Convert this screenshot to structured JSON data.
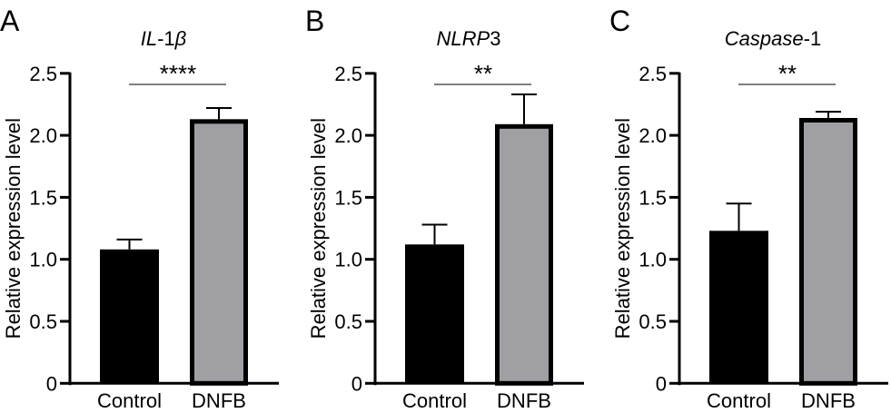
{
  "chart_data": [
    {
      "type": "bar",
      "panel_letter": "A",
      "title_parts": [
        {
          "text": "IL",
          "italic": true
        },
        {
          "text": "-1",
          "italic": false
        },
        {
          "text": "β",
          "italic": true
        }
      ],
      "ylabel": "Relative expression level",
      "categories": [
        "Control",
        "DNFB"
      ],
      "values": [
        1.08,
        2.13
      ],
      "errors": [
        0.08,
        0.09
      ],
      "ylim": [
        0,
        2.5
      ],
      "yticks": [
        "0",
        "0.5",
        "1.0",
        "1.5",
        "2.0",
        "2.5"
      ],
      "significance": "****",
      "colors": [
        "#000000",
        "#a0a0a4"
      ]
    },
    {
      "type": "bar",
      "panel_letter": "B",
      "title_parts": [
        {
          "text": "NLRP",
          "italic": true
        },
        {
          "text": "3",
          "italic": false
        }
      ],
      "ylabel": "Relative expression level",
      "categories": [
        "Control",
        "DNFB"
      ],
      "values": [
        1.12,
        2.09
      ],
      "errors": [
        0.16,
        0.24
      ],
      "ylim": [
        0,
        2.5
      ],
      "yticks": [
        "0",
        "0.5",
        "1.0",
        "1.5",
        "2.0",
        "2.5"
      ],
      "significance": "**",
      "colors": [
        "#000000",
        "#a0a0a4"
      ]
    },
    {
      "type": "bar",
      "panel_letter": "C",
      "title_parts": [
        {
          "text": "Caspase",
          "italic": true
        },
        {
          "text": "-1",
          "italic": false
        }
      ],
      "ylabel": "Relative expression level",
      "categories": [
        "Control",
        "DNFB"
      ],
      "values": [
        1.23,
        2.14
      ],
      "errors": [
        0.22,
        0.05
      ],
      "ylim": [
        0,
        2.5
      ],
      "yticks": [
        "0",
        "0.5",
        "1.0",
        "1.5",
        "2.0",
        "2.5"
      ],
      "significance": "**",
      "colors": [
        "#000000",
        "#a0a0a4"
      ]
    }
  ]
}
